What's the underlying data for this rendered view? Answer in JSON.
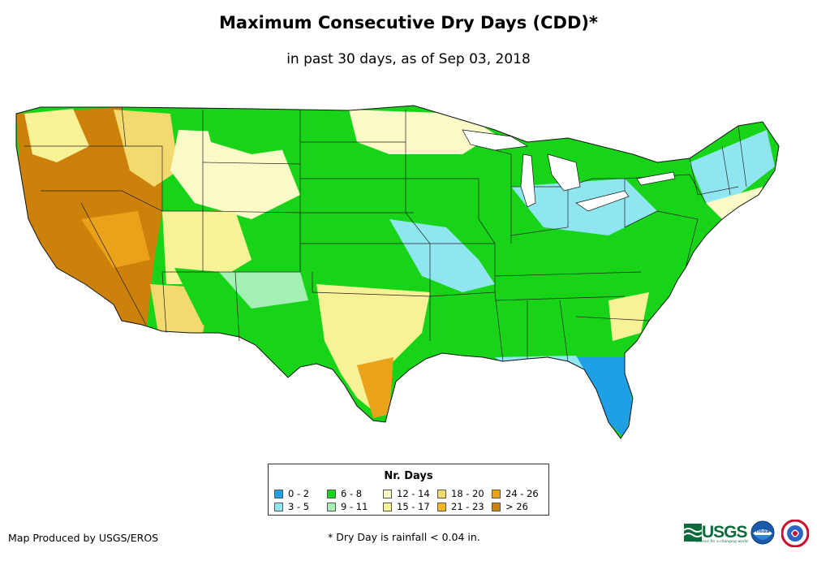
{
  "title": "Maximum Consecutive Dry Days (CDD)*",
  "subtitle": "in past 30 days, as of Sep 03, 2018",
  "legend": {
    "title": "Nr. Days",
    "items": [
      {
        "label": "0 - 2",
        "color": "#1e9fe6"
      },
      {
        "label": "3 - 5",
        "color": "#8fe6f0"
      },
      {
        "label": "6 - 8",
        "color": "#18d418"
      },
      {
        "label": "9 - 11",
        "color": "#a4f0b4"
      },
      {
        "label": "12 - 14",
        "color": "#fafac8"
      },
      {
        "label": "15 - 17",
        "color": "#f8f296"
      },
      {
        "label": "18 - 20",
        "color": "#f4d96e"
      },
      {
        "label": "21 - 23",
        "color": "#f6b81e"
      },
      {
        "label": "24 - 26",
        "color": "#eaa21a"
      },
      {
        "label": "> 26",
        "color": "#cc820a"
      }
    ]
  },
  "footer": {
    "credit": "Map Produced by USGS/EROS",
    "note": "* Dry Day is rainfall < 0.04 in."
  },
  "logos": {
    "usgs_text": "USGS",
    "usgs_tagline": "science for a changing world",
    "noaa_text": "noaa"
  }
}
